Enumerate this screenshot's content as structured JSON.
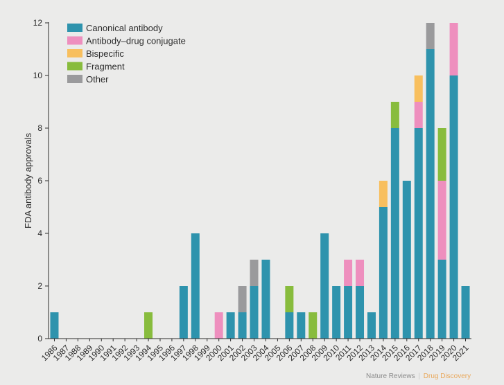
{
  "chart_data": {
    "type": "bar",
    "stacked": true,
    "title": "",
    "xlabel": "",
    "ylabel": "FDA antibody approvals",
    "ylim": [
      0,
      12
    ],
    "yticks": [
      0,
      2,
      4,
      6,
      8,
      10,
      12
    ],
    "legend_position": "top-left",
    "categories": [
      "1986",
      "1987",
      "1988",
      "1989",
      "1990",
      "1991",
      "1992",
      "1993",
      "1994",
      "1995",
      "1996",
      "1997",
      "1998",
      "1999",
      "2000",
      "2001",
      "2002",
      "2003",
      "2004",
      "2005",
      "2006",
      "2007",
      "2008",
      "2009",
      "2010",
      "2011",
      "2012",
      "2013",
      "2014",
      "2015",
      "2016",
      "2017",
      "2018",
      "2019",
      "2020",
      "2021"
    ],
    "series": [
      {
        "name": "Canonical antibody",
        "color": "#2e93ad",
        "values": [
          1,
          0,
          0,
          0,
          0,
          0,
          0,
          0,
          0,
          0,
          0,
          2,
          4,
          0,
          0,
          1,
          1,
          2,
          3,
          0,
          1,
          1,
          0,
          4,
          2,
          2,
          2,
          1,
          5,
          8,
          6,
          8,
          11,
          3,
          10,
          2
        ]
      },
      {
        "name": "Antibody–drug conjugate",
        "color": "#ee8fbe",
        "values": [
          0,
          0,
          0,
          0,
          0,
          0,
          0,
          0,
          0,
          0,
          0,
          0,
          0,
          0,
          1,
          0,
          0,
          0,
          0,
          0,
          0,
          0,
          0,
          0,
          0,
          1,
          1,
          0,
          0,
          0,
          0,
          1,
          0,
          3,
          2,
          0
        ]
      },
      {
        "name": "Bispecific",
        "color": "#f8bf5e",
        "values": [
          0,
          0,
          0,
          0,
          0,
          0,
          0,
          0,
          0,
          0,
          0,
          0,
          0,
          0,
          0,
          0,
          0,
          0,
          0,
          0,
          0,
          0,
          0,
          0,
          0,
          0,
          0,
          0,
          1,
          0,
          0,
          1,
          0,
          0,
          0,
          0
        ]
      },
      {
        "name": "Fragment",
        "color": "#88bc3d",
        "values": [
          0,
          0,
          0,
          0,
          0,
          0,
          0,
          0,
          1,
          0,
          0,
          0,
          0,
          0,
          0,
          0,
          0,
          0,
          0,
          0,
          1,
          0,
          1,
          0,
          0,
          0,
          0,
          0,
          0,
          1,
          0,
          0,
          0,
          2,
          0,
          0
        ]
      },
      {
        "name": "Other",
        "color": "#9a9a9c",
        "values": [
          0,
          0,
          0,
          0,
          0,
          0,
          0,
          0,
          0,
          0,
          0,
          0,
          0,
          0,
          0,
          0,
          1,
          1,
          0,
          0,
          0,
          0,
          0,
          0,
          0,
          0,
          0,
          0,
          0,
          0,
          0,
          0,
          1,
          0,
          0,
          0
        ]
      }
    ]
  },
  "credit": {
    "journal": "Nature Reviews",
    "separator": "|",
    "section": "Drug Discovery"
  }
}
